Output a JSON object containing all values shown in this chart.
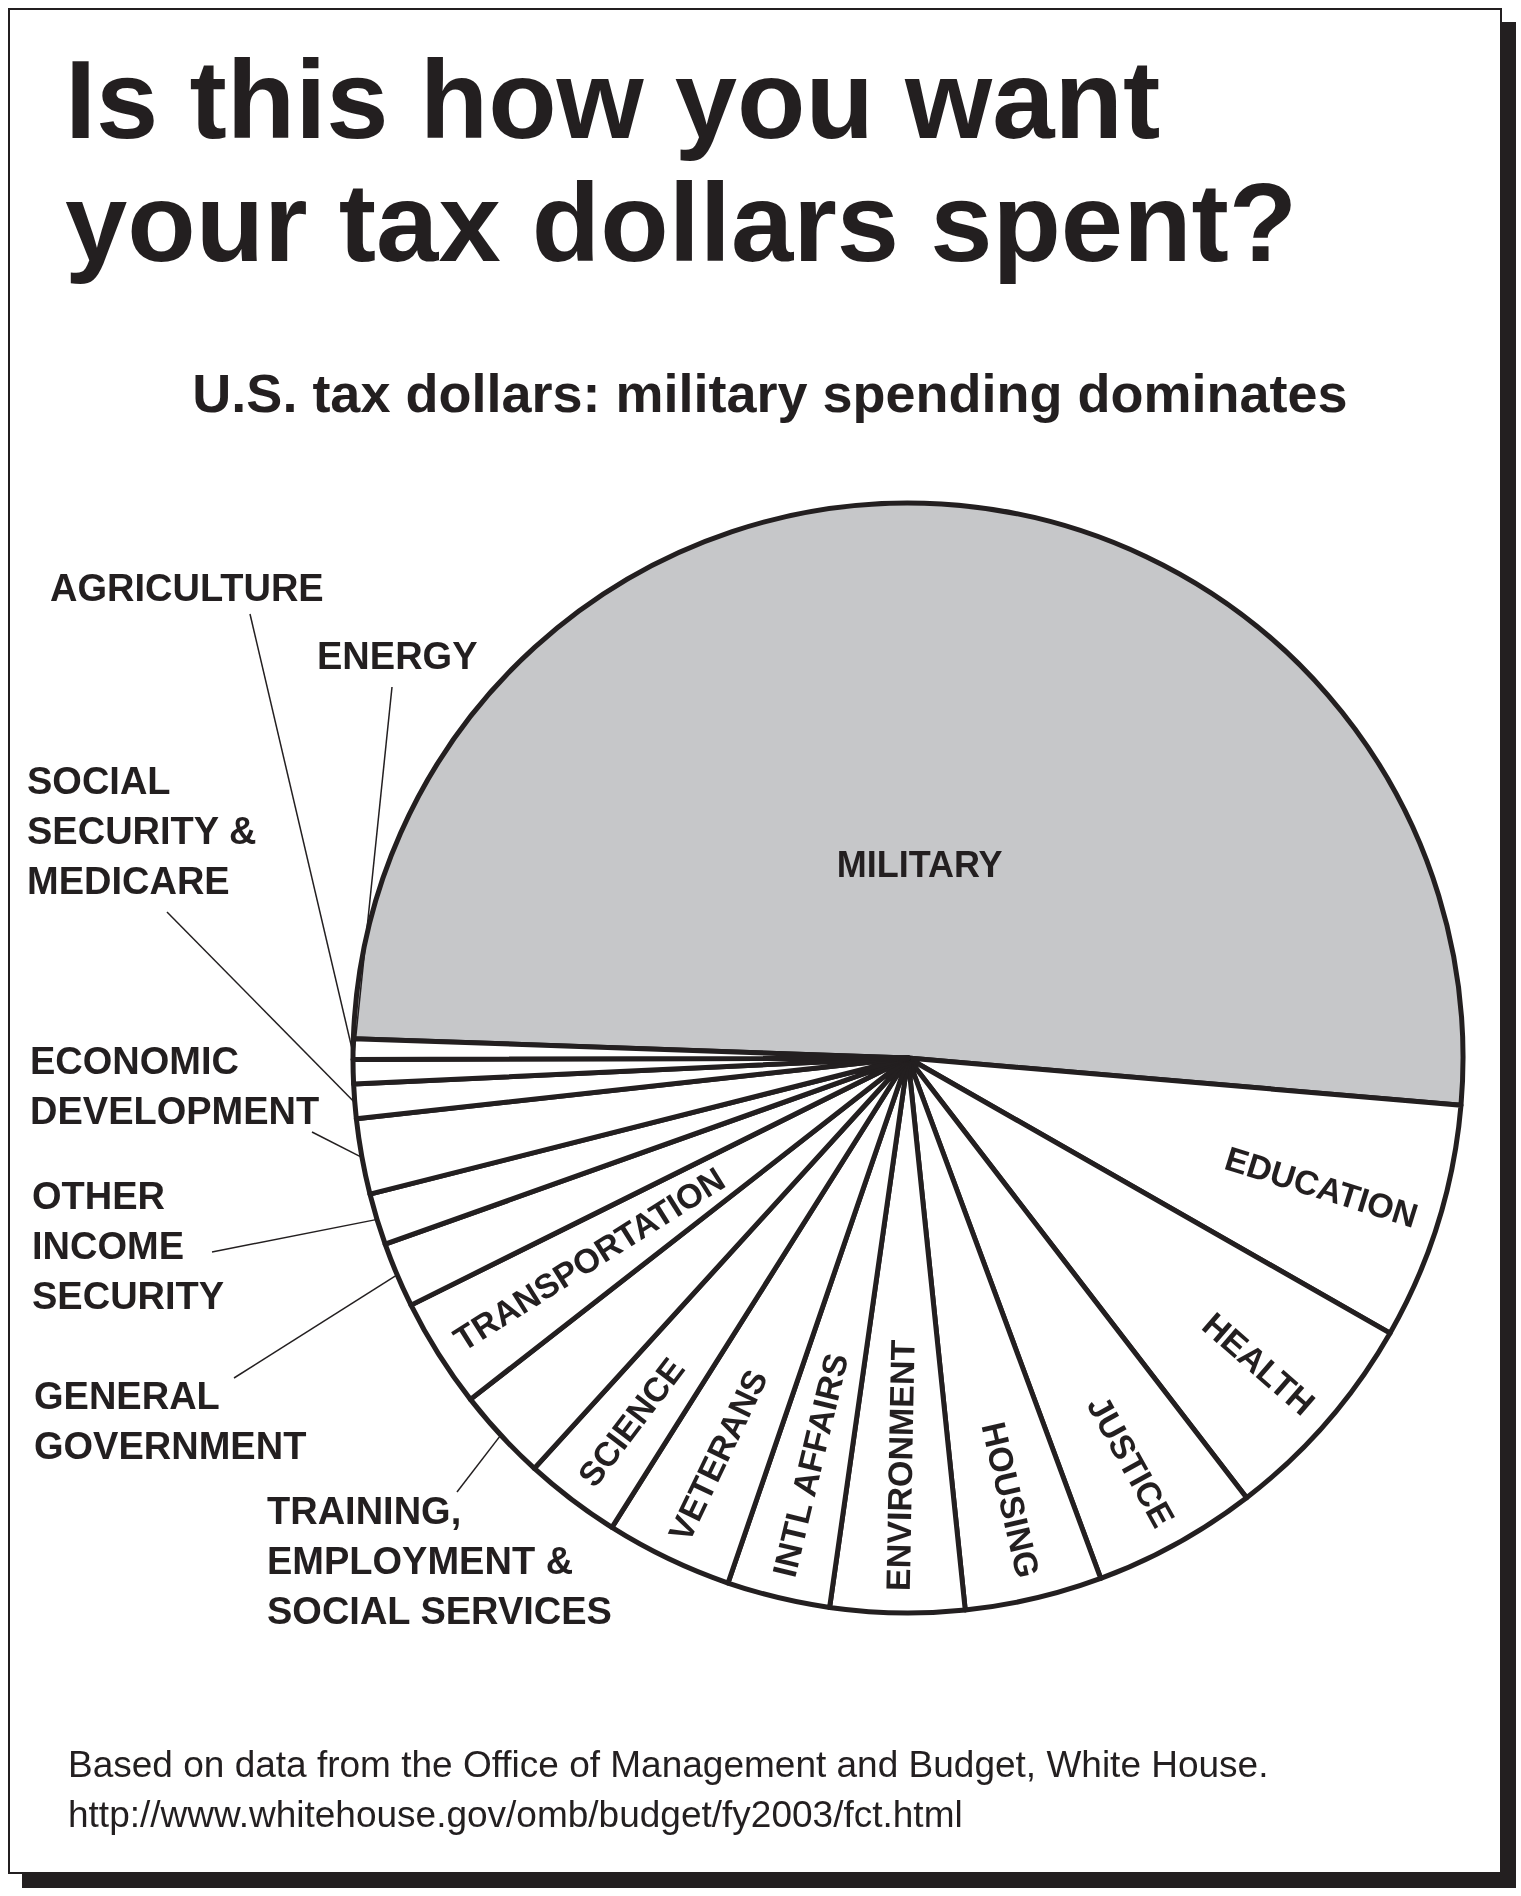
{
  "chart_data": {
    "type": "pie",
    "title": "Is this how you want your tax dollars spent?",
    "subtitle": "U.S. tax dollars: military spending dominates",
    "categories": [
      "MILITARY",
      "EDUCATION",
      "HEALTH",
      "JUSTICE",
      "HOUSING",
      "ENVIRONMENT",
      "INTL AFFAIRS",
      "VETERANS",
      "SCIENCE",
      "TRAINING, EMPLOYMENT & SOCIAL SERVICES",
      "TRANSPORTATION",
      "GENERAL GOVERNMENT",
      "OTHER INCOME SECURITY",
      "ECONOMIC DEVELOPMENT",
      "SOCIAL SECURITY & MEDICARE",
      "ENERGY",
      "AGRICULTURE"
    ],
    "values": [
      50.8,
      6.9,
      6.3,
      4.8,
      4.0,
      3.9,
      3.0,
      3.7,
      2.8,
      2.7,
      3.2,
      1.9,
      1.5,
      2.2,
      1.0,
      0.7,
      0.6
    ],
    "colors": [
      "#c6c7c9",
      "#ffffff",
      "#ffffff",
      "#ffffff",
      "#ffffff",
      "#ffffff",
      "#ffffff",
      "#ffffff",
      "#ffffff",
      "#ffffff",
      "#ffffff",
      "#ffffff",
      "#ffffff",
      "#ffffff",
      "#ffffff",
      "#ffffff",
      "#ffffff"
    ],
    "legend": false,
    "annotations": [
      "Based on data from the Office of Management and Budget, White House.",
      "http://www.whitehouse.gov/omb/budget/fy2003/fct.html"
    ]
  }
}
